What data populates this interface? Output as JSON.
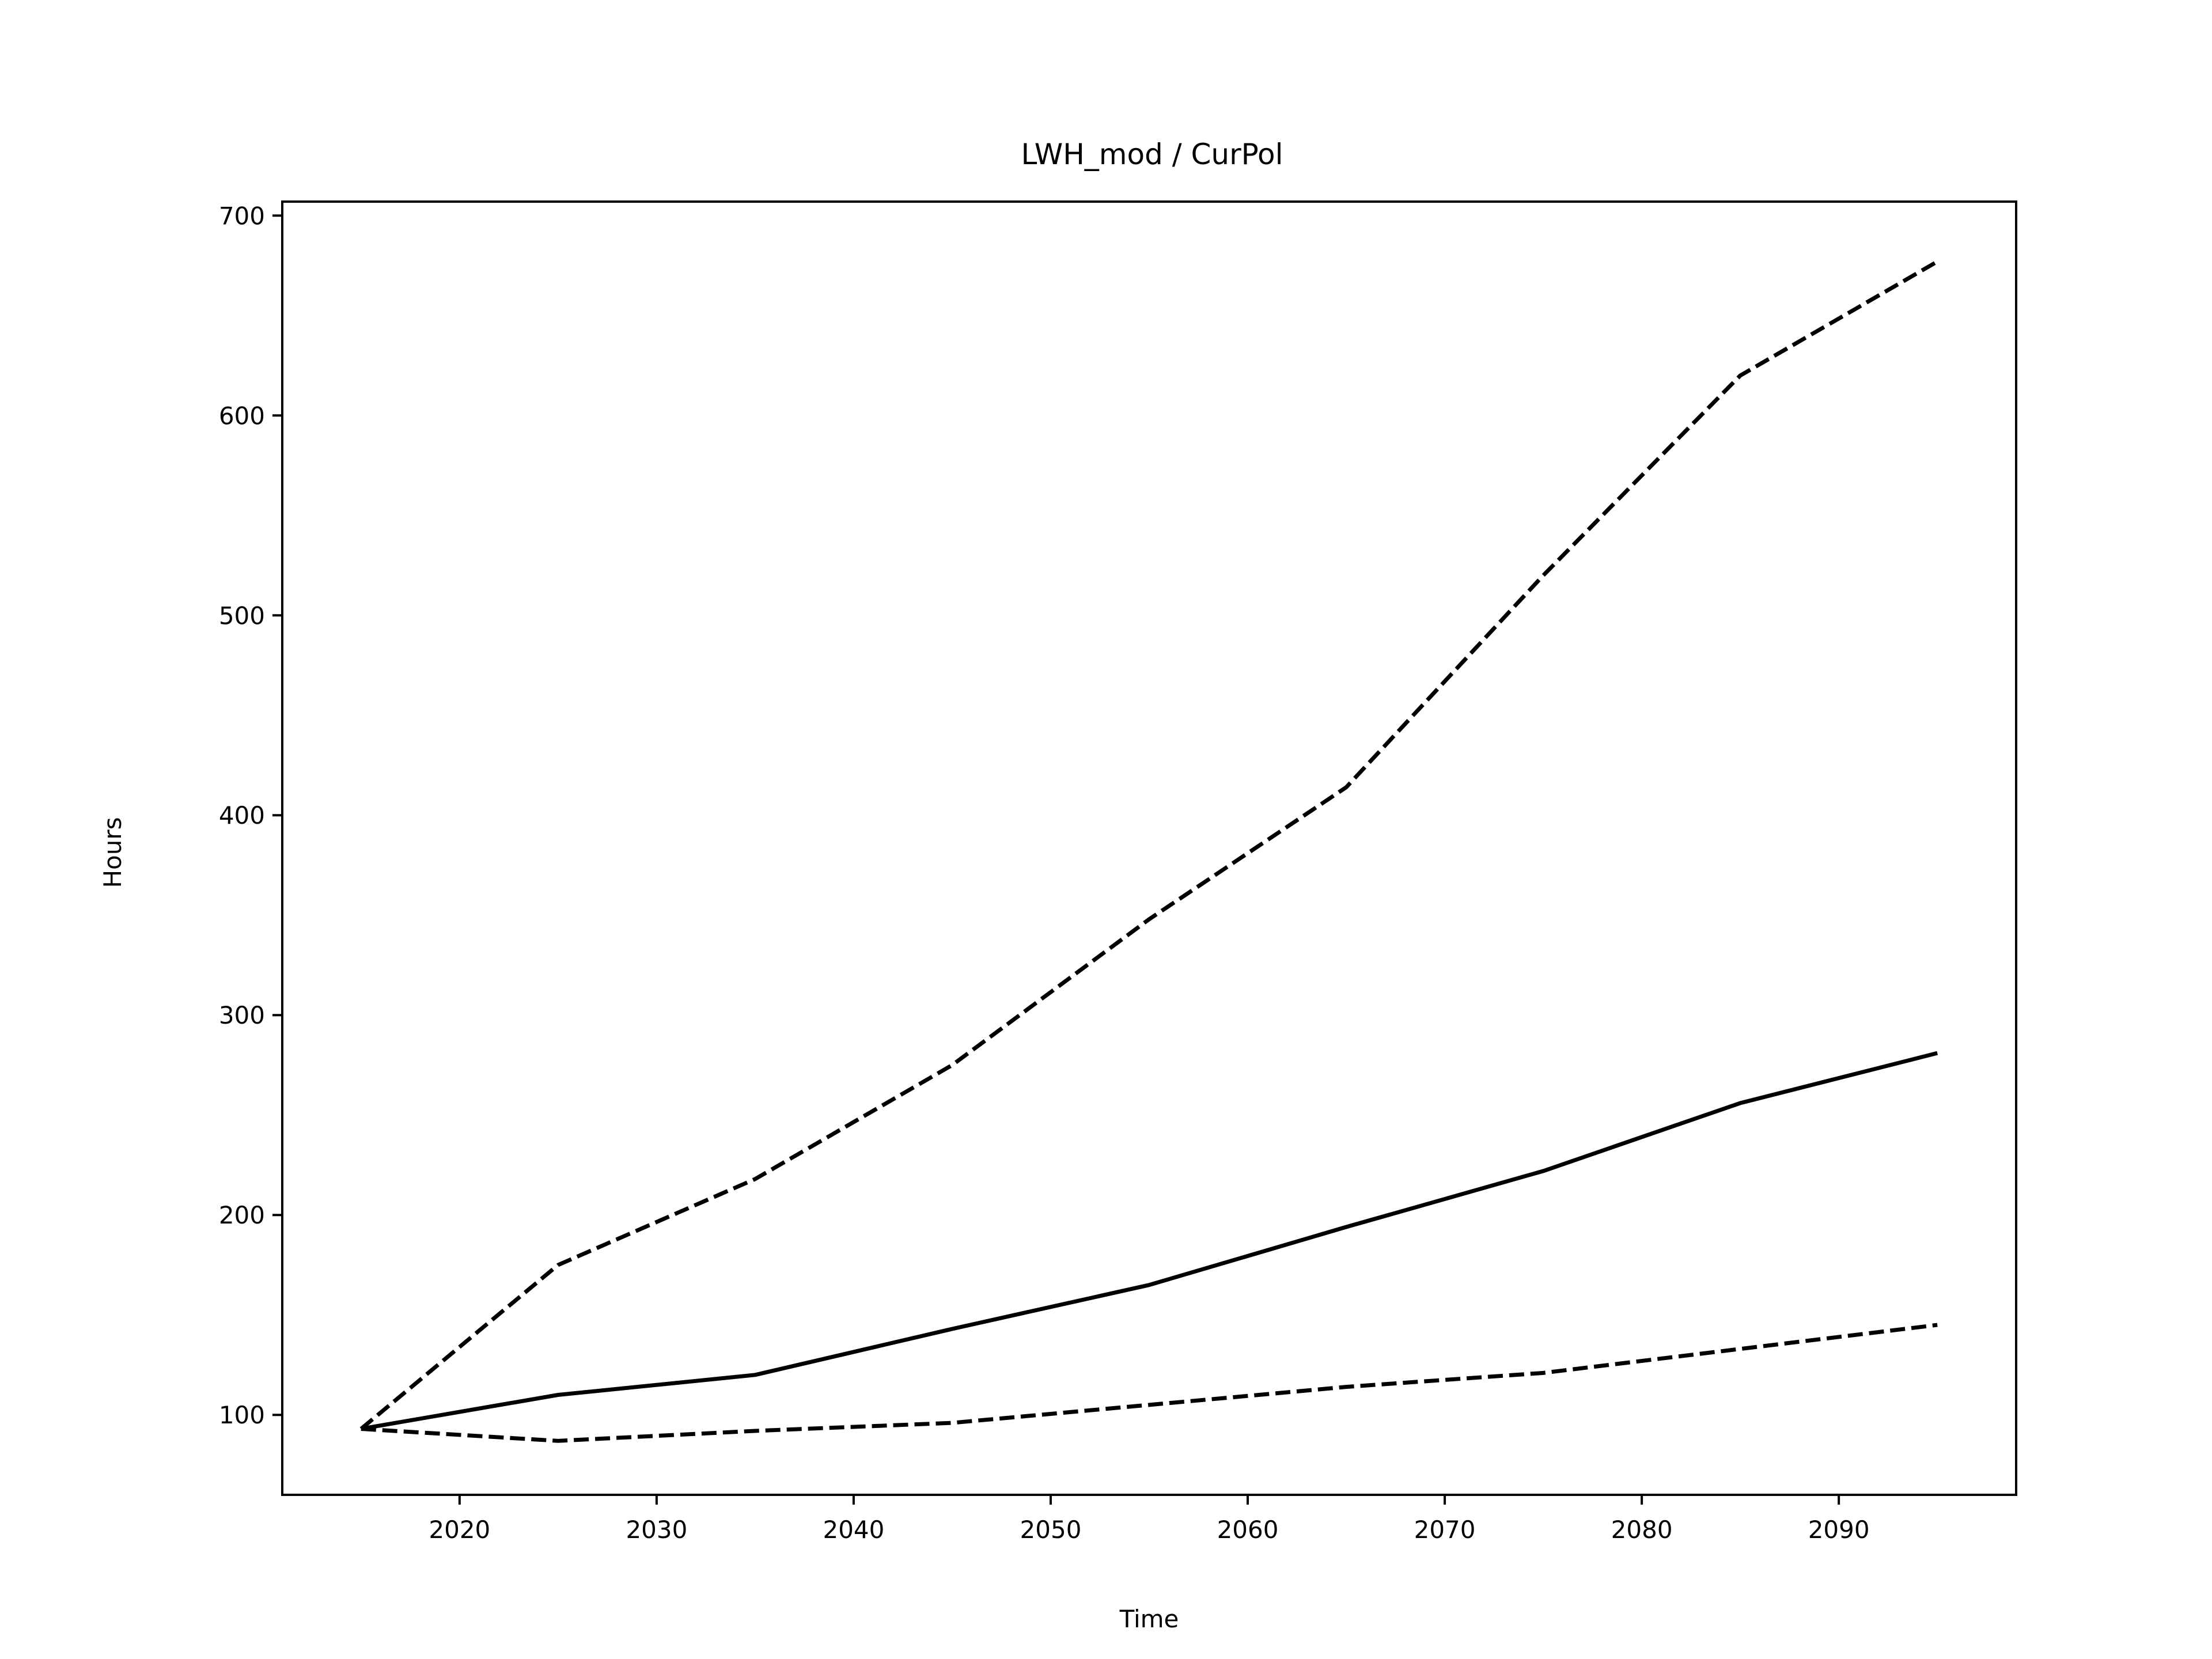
{
  "chart_data": {
    "type": "line",
    "title": "LWH_mod / CurPol",
    "xlabel": "Time",
    "ylabel": "Hours",
    "xlim": [
      2011,
      2099
    ],
    "ylim": [
      60,
      707
    ],
    "xticks": [
      2020,
      2030,
      2040,
      2050,
      2060,
      2070,
      2080,
      2090
    ],
    "yticks": [
      100,
      200,
      300,
      400,
      500,
      600,
      700
    ],
    "grid": false,
    "legend": "none",
    "x": [
      2015,
      2025,
      2035,
      2045,
      2055,
      2065,
      2075,
      2085,
      2095
    ],
    "series": [
      {
        "style": "dashed",
        "color": "#000000",
        "values": [
          93,
          175,
          218,
          275,
          348,
          414,
          520,
          620,
          677
        ]
      },
      {
        "style": "solid",
        "color": "#000000",
        "values": [
          93,
          110,
          120,
          143,
          165,
          194,
          222,
          256,
          281
        ]
      },
      {
        "style": "dashed",
        "color": "#000000",
        "values": [
          93,
          87,
          92,
          96,
          105,
          114,
          121,
          133,
          145
        ]
      }
    ]
  }
}
